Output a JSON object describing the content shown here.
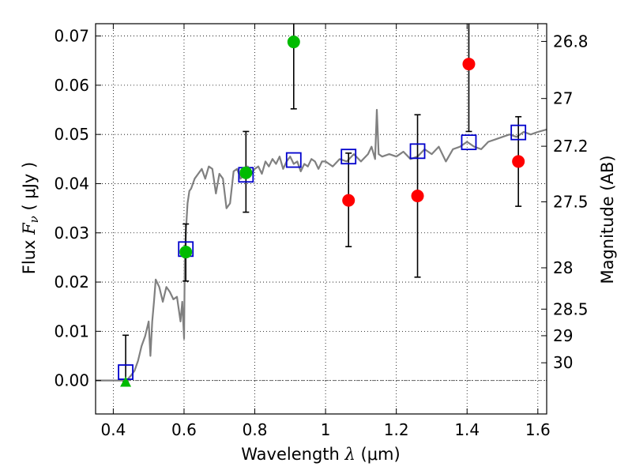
{
  "chart_data": {
    "type": "scatter",
    "xlabel": "Wavelength  λ (μm)",
    "xlabel_parts": {
      "main": "Wavelength  ",
      "symbol": "λ",
      "unit": " (μm)"
    },
    "ylabel": "Flux  Fν  ( μJy )",
    "ylabel_parts": {
      "main": "Flux  ",
      "symbol": "F",
      "sub": "ν",
      "unit": "  ( μJy )"
    },
    "y2label": "Magnitude (AB)",
    "xlim": [
      0.35,
      1.625
    ],
    "ylim": [
      -0.0068,
      0.0725
    ],
    "grid": true,
    "grid_style": "dotted",
    "x_ticks": [
      {
        "v": 0.4,
        "label": "0.4"
      },
      {
        "v": 0.6,
        "label": "0.6"
      },
      {
        "v": 0.8,
        "label": "0.8"
      },
      {
        "v": 1.0,
        "label": "1"
      },
      {
        "v": 1.2,
        "label": "1.2"
      },
      {
        "v": 1.4,
        "label": "1.4"
      },
      {
        "v": 1.6,
        "label": "1.6"
      }
    ],
    "y_ticks": [
      {
        "v": 0.0,
        "label": "0.00"
      },
      {
        "v": 0.01,
        "label": "0.01"
      },
      {
        "v": 0.02,
        "label": "0.02"
      },
      {
        "v": 0.03,
        "label": "0.03"
      },
      {
        "v": 0.04,
        "label": "0.04"
      },
      {
        "v": 0.05,
        "label": "0.05"
      },
      {
        "v": 0.06,
        "label": "0.06"
      },
      {
        "v": 0.07,
        "label": "0.07"
      }
    ],
    "mag_ticks": [
      {
        "label": "26.8",
        "flux": 0.0689
      },
      {
        "label": "27",
        "flux": 0.0573
      },
      {
        "label": "27.2",
        "flux": 0.0476
      },
      {
        "label": "27.5",
        "flux": 0.0363
      },
      {
        "label": "28",
        "flux": 0.0229
      },
      {
        "label": "28.5",
        "flux": 0.0145
      },
      {
        "label": "29",
        "flux": 0.0091
      },
      {
        "label": "30",
        "flux": 0.0036
      }
    ],
    "colors": {
      "sed_model": "#808080",
      "model_box": "#0000cc",
      "detection": "#00bb00",
      "measurement": "#ff0000",
      "errorbar": "#000000",
      "zero_line": "#666666"
    },
    "sed_model": {
      "x": [
        0.35,
        0.43,
        0.44,
        0.45,
        0.46,
        0.47,
        0.48,
        0.49,
        0.5,
        0.505,
        0.51,
        0.515,
        0.52,
        0.53,
        0.54,
        0.55,
        0.56,
        0.57,
        0.58,
        0.59,
        0.595,
        0.6,
        0.602,
        0.605,
        0.61,
        0.615,
        0.62,
        0.63,
        0.64,
        0.65,
        0.66,
        0.67,
        0.68,
        0.69,
        0.7,
        0.71,
        0.72,
        0.73,
        0.74,
        0.75,
        0.76,
        0.77,
        0.78,
        0.79,
        0.8,
        0.81,
        0.82,
        0.83,
        0.84,
        0.85,
        0.86,
        0.87,
        0.88,
        0.89,
        0.9,
        0.91,
        0.92,
        0.93,
        0.94,
        0.95,
        0.96,
        0.97,
        0.98,
        0.99,
        1.0,
        1.02,
        1.04,
        1.06,
        1.08,
        1.1,
        1.12,
        1.13,
        1.14,
        1.145,
        1.15,
        1.16,
        1.18,
        1.2,
        1.22,
        1.24,
        1.26,
        1.28,
        1.3,
        1.32,
        1.34,
        1.36,
        1.38,
        1.4,
        1.42,
        1.44,
        1.46,
        1.48,
        1.5,
        1.52,
        1.54,
        1.56,
        1.58,
        1.6,
        1.625
      ],
      "y": [
        0.0,
        0.0,
        0.0002,
        0.001,
        0.002,
        0.004,
        0.007,
        0.009,
        0.012,
        0.005,
        0.012,
        0.016,
        0.0205,
        0.019,
        0.016,
        0.019,
        0.018,
        0.0165,
        0.017,
        0.012,
        0.016,
        0.0085,
        0.024,
        0.03,
        0.036,
        0.0385,
        0.039,
        0.041,
        0.042,
        0.043,
        0.041,
        0.0435,
        0.043,
        0.038,
        0.042,
        0.041,
        0.035,
        0.036,
        0.0425,
        0.043,
        0.041,
        0.042,
        0.0435,
        0.042,
        0.043,
        0.0435,
        0.042,
        0.0445,
        0.0435,
        0.045,
        0.044,
        0.0455,
        0.043,
        0.0445,
        0.0455,
        0.044,
        0.0445,
        0.0425,
        0.044,
        0.0435,
        0.045,
        0.0445,
        0.043,
        0.0445,
        0.0445,
        0.0435,
        0.045,
        0.0445,
        0.046,
        0.0445,
        0.046,
        0.0475,
        0.045,
        0.055,
        0.046,
        0.0455,
        0.046,
        0.0455,
        0.0465,
        0.045,
        0.0455,
        0.047,
        0.046,
        0.0475,
        0.0445,
        0.047,
        0.0475,
        0.0485,
        0.0475,
        0.047,
        0.0485,
        0.049,
        0.0495,
        0.05,
        0.0495,
        0.0505,
        0.05,
        0.0505,
        0.051
      ]
    },
    "model_boxes": {
      "x": [
        0.435,
        0.605,
        0.775,
        0.91,
        1.065,
        1.26,
        1.405,
        1.545
      ],
      "y": [
        0.0017,
        0.0267,
        0.0418,
        0.0448,
        0.0455,
        0.0466,
        0.0484,
        0.0504
      ]
    },
    "detections": {
      "x": [
        0.605,
        0.775,
        0.91
      ],
      "y": [
        0.0261,
        0.0422,
        0.0688
      ],
      "err_low": [
        0.0202,
        0.0342,
        0.0552
      ],
      "err_high": [
        0.0318,
        0.0506,
        0.0725
      ]
    },
    "upper_limit": {
      "x": 0.435,
      "y": -0.0003,
      "err_high": 0.0092
    },
    "measurements": {
      "x": [
        1.065,
        1.26,
        1.405,
        1.545
      ],
      "y": [
        0.0366,
        0.0375,
        0.0643,
        0.0445
      ],
      "err_low": [
        0.0272,
        0.021,
        0.0506,
        0.0354
      ],
      "err_high": [
        0.0462,
        0.054,
        0.0725,
        0.0536
      ]
    }
  }
}
